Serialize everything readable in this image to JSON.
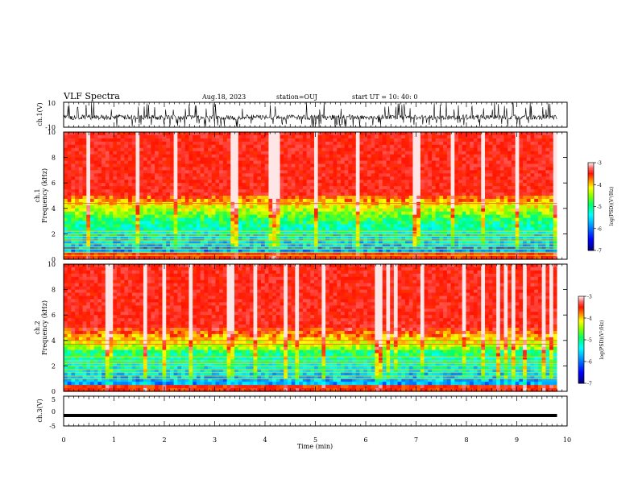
{
  "header": {
    "title": "VLF Spectra",
    "date": "Aug.18, 2023",
    "station": "station=OUJ",
    "start_time": "start  UT =  10: 40: 0"
  },
  "chart_data": [
    {
      "type": "line",
      "panel": "ch.1 waveform",
      "ylabel": "ch.1(V)",
      "ylim": [
        -10,
        10
      ],
      "yticks": [
        "10",
        "-10"
      ],
      "xlim": [
        0,
        10
      ],
      "series": [
        {
          "values_approx_baseline": -2,
          "max": 10,
          "min": -10
        }
      ]
    },
    {
      "type": "heatmap",
      "panel": "ch.1 spectrogram",
      "ylabel_line1": "ch.1",
      "ylabel_line2": "Frequency  (kHz)",
      "ylim": [
        0,
        10
      ],
      "yticks": [
        "0",
        "2",
        "4",
        "6",
        "8",
        "10"
      ],
      "xlim": [
        0,
        9.8
      ],
      "colorbar": {
        "label": "log(PSD)(V²/Hz)",
        "range": [
          -7,
          -3
        ],
        "ticks": [
          "-3",
          "-4",
          "-5",
          "-6",
          "-7"
        ]
      },
      "lines_khz": [
        0.3,
        0.55,
        0.8,
        1.0,
        1.2,
        1.45,
        1.6,
        1.8,
        2.0,
        2.2,
        4.4
      ]
    },
    {
      "type": "heatmap",
      "panel": "ch.2 spectrogram",
      "ylabel_line1": "ch.2",
      "ylabel_line2": "Frequency  (kHz)",
      "ylim": [
        0,
        10
      ],
      "yticks": [
        "0",
        "2",
        "4",
        "6",
        "8",
        "10"
      ],
      "xlim": [
        0,
        9.8
      ],
      "colorbar": {
        "label": "log(PSD)(V²/Hz)",
        "range": [
          -7,
          -3
        ],
        "ticks": [
          "-3",
          "-4",
          "-5",
          "-6",
          "-7"
        ]
      },
      "lines_khz": [
        1.0,
        1.2,
        1.5,
        1.7,
        2.0,
        2.2,
        2.4,
        2.7,
        3.7,
        4.0
      ]
    },
    {
      "type": "line",
      "panel": "ch.3 waveform",
      "ylabel": "ch.3(V)",
      "ylim": [
        -5,
        5
      ],
      "yticks": [
        "5",
        "0",
        "-5"
      ],
      "xlim": [
        0,
        10
      ],
      "series": [
        {
          "constant": -1.5
        }
      ]
    }
  ],
  "xaxis": {
    "label": "Time  (min)",
    "ticks": [
      "0",
      "1",
      "2",
      "3",
      "4",
      "5",
      "6",
      "7",
      "8",
      "9",
      "10"
    ],
    "range": [
      0,
      10
    ]
  },
  "colors": {
    "jet": [
      "#000080",
      "#0000ff",
      "#0080ff",
      "#00ffff",
      "#00ff80",
      "#80ff00",
      "#ffff00",
      "#ff8000",
      "#ff0000",
      "#ff6060",
      "#ffc0c0",
      "#ffffff"
    ]
  }
}
